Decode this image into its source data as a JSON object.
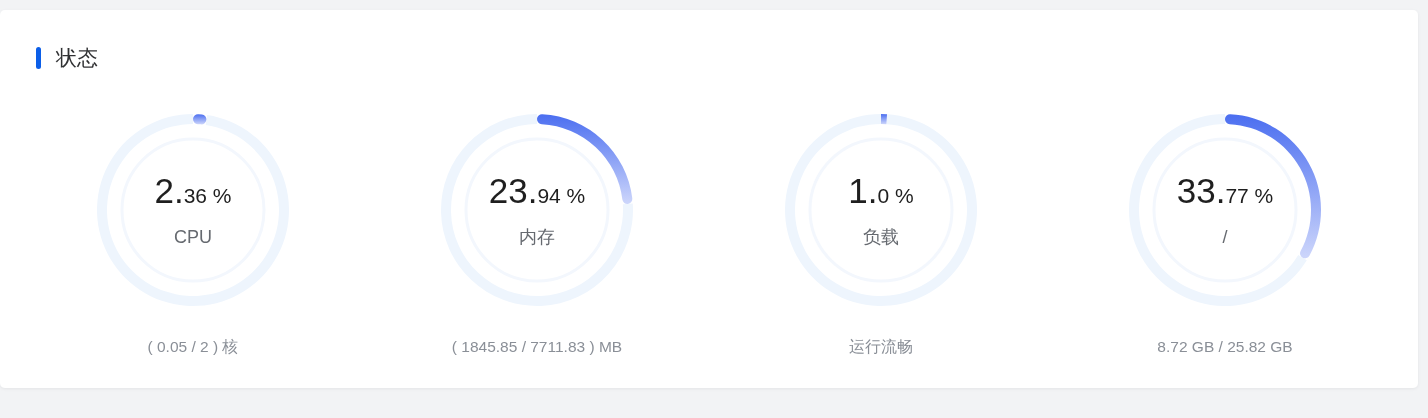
{
  "chart_data": [
    {
      "type": "other",
      "title": "状态"
    },
    {
      "type": "donut",
      "title": "CPU",
      "categories": [
        null,
        null
      ],
      "values": [
        2.36,
        97.64
      ],
      "value_labels": [
        "2.36 %",
        null
      ],
      "colors": [
        "#4b6ef0",
        "#eef5fd"
      ],
      "annotations": [
        "( 0.05 / 2 ) 核"
      ]
    },
    {
      "type": "donut",
      "title": "内存",
      "categories": [
        null,
        null
      ],
      "values": [
        23.94,
        76.06
      ],
      "value_labels": [
        "23.94 %",
        null
      ],
      "colors": [
        "#4b6ef0",
        "#eef5fd"
      ],
      "annotations": [
        "( 1845.85 / 7711.83 ) MB"
      ]
    },
    {
      "type": "donut",
      "title": "负载",
      "categories": [
        null,
        null
      ],
      "values": [
        1.0,
        99.0
      ],
      "value_labels": [
        "1.0 %",
        null
      ],
      "colors": [
        "#4b6ef0",
        "#eef5fd"
      ],
      "annotations": [
        "运行流畅"
      ]
    },
    {
      "type": "donut",
      "title": "/",
      "categories": [
        null,
        null
      ],
      "values": [
        33.77,
        66.23
      ],
      "value_labels": [
        "33.77 %",
        null
      ],
      "colors": [
        "#4b6ef0",
        "#eef5fd"
      ],
      "annotations": [
        "8.72 GB / 25.82 GB"
      ]
    }
  ]
}
